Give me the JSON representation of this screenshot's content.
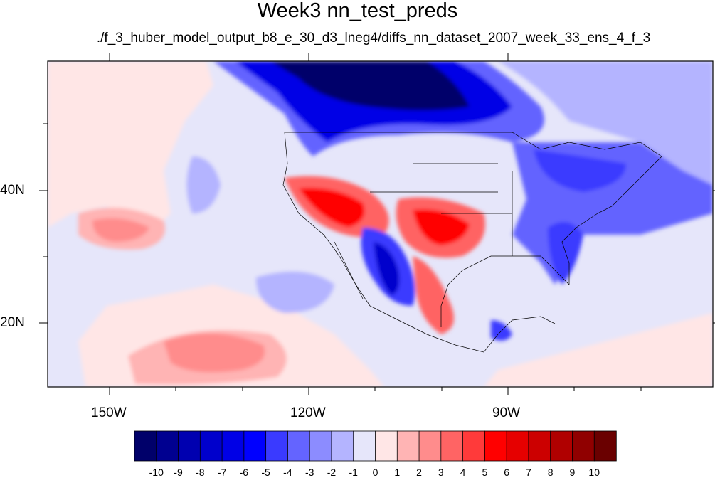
{
  "title": "Week3 nn_test_preds",
  "subtitle": "./f_3_huber_model_output_b8_e_30_d3_lneg4/diffs_nn_dataset_2007_week_33_ens_4_f_3",
  "lat_labels": [
    "40N",
    "20N"
  ],
  "lon_labels": [
    "150W",
    "120W",
    "90W"
  ],
  "map_extent": {
    "lon_min": -160,
    "lon_max": -62,
    "lat_min": 11,
    "lat_max": 60
  },
  "colorbar": {
    "labels": [
      "-10",
      "-9",
      "-8",
      "-7",
      "-6",
      "-5",
      "-4",
      "-3",
      "-2",
      "-1",
      "0",
      "1",
      "2",
      "3",
      "4",
      "5",
      "6",
      "7",
      "8",
      "9",
      "10"
    ],
    "colors": [
      "#00006a",
      "#000090",
      "#0000b0",
      "#0000cc",
      "#0000e6",
      "#0000ff",
      "#3a3aff",
      "#6464ff",
      "#8c8cff",
      "#b4b4ff",
      "#e6e6fa",
      "#ffe6e6",
      "#ffb4b4",
      "#ff8c8c",
      "#ff6464",
      "#ff3a3a",
      "#ff0000",
      "#e60000",
      "#cc0000",
      "#b00000",
      "#900000",
      "#6a0000"
    ]
  }
}
